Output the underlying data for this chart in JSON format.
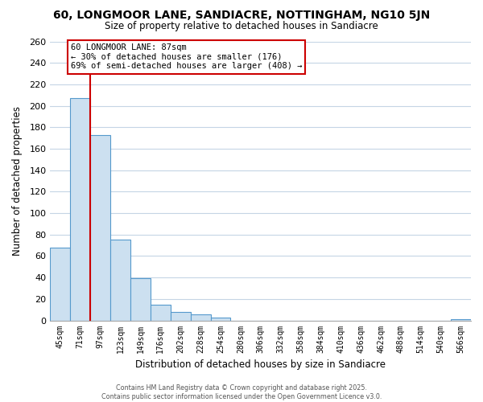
{
  "title": "60, LONGMOOR LANE, SANDIACRE, NOTTINGHAM, NG10 5JN",
  "subtitle": "Size of property relative to detached houses in Sandiacre",
  "xlabel": "Distribution of detached houses by size in Sandiacre",
  "ylabel": "Number of detached properties",
  "bin_labels": [
    "45sqm",
    "71sqm",
    "97sqm",
    "123sqm",
    "149sqm",
    "176sqm",
    "202sqm",
    "228sqm",
    "254sqm",
    "280sqm",
    "306sqm",
    "332sqm",
    "358sqm",
    "384sqm",
    "410sqm",
    "436sqm",
    "462sqm",
    "488sqm",
    "514sqm",
    "540sqm",
    "566sqm"
  ],
  "bar_heights": [
    68,
    207,
    173,
    75,
    39,
    15,
    8,
    6,
    3,
    0,
    0,
    0,
    0,
    0,
    0,
    0,
    0,
    0,
    0,
    0,
    1
  ],
  "bar_color": "#cce0f0",
  "bar_edge_color": "#5599cc",
  "vline_color": "#cc0000",
  "vline_x_idx": 1.5,
  "ylim": [
    0,
    260
  ],
  "yticks": [
    0,
    20,
    40,
    60,
    80,
    100,
    120,
    140,
    160,
    180,
    200,
    220,
    240,
    260
  ],
  "annotation_title": "60 LONGMOOR LANE: 87sqm",
  "annotation_line2": "← 30% of detached houses are smaller (176)",
  "annotation_line3": "69% of semi-detached houses are larger (408) →",
  "footer_line1": "Contains HM Land Registry data © Crown copyright and database right 2025.",
  "footer_line2": "Contains public sector information licensed under the Open Government Licence v3.0.",
  "background_color": "#ffffff",
  "grid_color": "#c5d5e5"
}
